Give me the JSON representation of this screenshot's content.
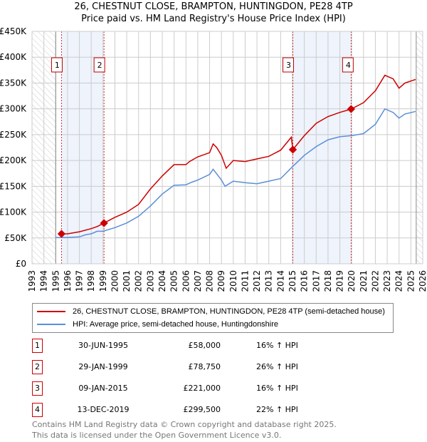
{
  "title_line1": "26, CHESTNUT CLOSE, BRAMPTON, HUNTINGDON, PE28 4TP",
  "title_line2": "Price paid vs. HM Land Registry's House Price Index (HPI)",
  "chart_data": {
    "type": "line",
    "title": "26, CHESTNUT CLOSE, BRAMPTON, HUNTINGDON, PE28 4TP - Price paid vs. HM Land Registry's House Price Index (HPI)",
    "xlim": [
      1993,
      2026
    ],
    "ylim": [
      0,
      450000
    ],
    "x_ticks": [
      "1993",
      "1994",
      "1995",
      "1996",
      "1997",
      "1998",
      "1999",
      "2000",
      "2001",
      "2002",
      "2003",
      "2004",
      "2005",
      "2006",
      "2007",
      "2008",
      "2009",
      "2010",
      "2011",
      "2012",
      "2013",
      "2014",
      "2015",
      "2016",
      "2017",
      "2018",
      "2019",
      "2020",
      "2021",
      "2022",
      "2023",
      "2024",
      "2025",
      "2026"
    ],
    "y_ticks": [
      {
        "v": 0,
        "label": "£0"
      },
      {
        "v": 50000,
        "label": "£50K"
      },
      {
        "v": 100000,
        "label": "£100K"
      },
      {
        "v": 150000,
        "label": "£150K"
      },
      {
        "v": 200000,
        "label": "£200K"
      },
      {
        "v": 250000,
        "label": "£250K"
      },
      {
        "v": 300000,
        "label": "£300K"
      },
      {
        "v": 350000,
        "label": "£350K"
      },
      {
        "v": 400000,
        "label": "£400K"
      },
      {
        "v": 450000,
        "label": "£450K"
      }
    ],
    "grid": true,
    "colors": {
      "property": "#cc0000",
      "hpi": "#5b8fd6",
      "shade": "#eef3fc",
      "hatch": "#cccccc"
    },
    "data_range": [
      1995.0,
      2025.45
    ],
    "series": [
      {
        "name": "26, CHESTNUT CLOSE, BRAMPTON, HUNTINGDON, PE28 4TP (semi-detached house)",
        "x": [
          1995.5,
          1996,
          1997,
          1998,
          1998.5,
          1999.08,
          2000,
          2001,
          2002,
          2003,
          2004,
          2005,
          2006,
          2006.3,
          2007,
          2008,
          2008.3,
          2008.6,
          2009,
          2009.4,
          2010,
          2011,
          2012,
          2013,
          2014,
          2014.9,
          2015.03,
          2016,
          2017,
          2018,
          2019,
          2019.95,
          2021,
          2022,
          2022.8,
          2023.5,
          2024,
          2024.5,
          2025.4
        ],
        "values": [
          58000,
          58000,
          62000,
          68000,
          72000,
          78750,
          90000,
          100000,
          115000,
          145000,
          170000,
          192000,
          192000,
          198000,
          207000,
          215000,
          232000,
          225000,
          210000,
          185000,
          200000,
          198000,
          203000,
          208000,
          220000,
          245000,
          221000,
          248000,
          272000,
          285000,
          293000,
          299500,
          312000,
          335000,
          365000,
          358000,
          340000,
          350000,
          357000
        ]
      },
      {
        "name": "HPI: Average price, semi-detached house, Huntingdonshire",
        "x": [
          1995.0,
          1996,
          1997,
          1997.5,
          1998,
          1998.5,
          1999,
          2000,
          2001,
          2002,
          2003,
          2004,
          2005,
          2006,
          2006.5,
          2007,
          2008,
          2008.3,
          2008.5,
          2009,
          2009.3,
          2010,
          2011,
          2012,
          2013,
          2014,
          2015,
          2016,
          2017,
          2018,
          2019,
          2020,
          2021,
          2022,
          2022.8,
          2023.5,
          2024,
          2024.5,
          2025.4
        ],
        "values": [
          51000,
          51000,
          52000,
          56000,
          58000,
          63000,
          63000,
          70000,
          79000,
          92000,
          112000,
          135000,
          152000,
          153000,
          158000,
          162000,
          173000,
          183000,
          177000,
          162000,
          150000,
          160000,
          157000,
          155000,
          160000,
          165000,
          188000,
          210000,
          227000,
          240000,
          246000,
          248000,
          252000,
          270000,
          300000,
          293000,
          282000,
          290000,
          295000
        ]
      }
    ],
    "sales": [
      {
        "label": "1",
        "x": 1995.49,
        "price": 58000
      },
      {
        "label": "2",
        "x": 1999.08,
        "price": 78750
      },
      {
        "label": "3",
        "x": 2015.03,
        "price": 221000
      },
      {
        "label": "4",
        "x": 2019.95,
        "price": 299500
      }
    ]
  },
  "legend": {
    "property": "26, CHESTNUT CLOSE, BRAMPTON, HUNTINGDON, PE28 4TP (semi-detached house)",
    "hpi": "HPI: Average price, semi-detached house, Huntingdonshire"
  },
  "transactions": [
    {
      "num": "1",
      "date": "30-JUN-1995",
      "price": "£58,000",
      "hpi": "16% ↑ HPI"
    },
    {
      "num": "2",
      "date": "29-JAN-1999",
      "price": "£78,750",
      "hpi": "26% ↑ HPI"
    },
    {
      "num": "3",
      "date": "09-JAN-2015",
      "price": "£221,000",
      "hpi": "16% ↑ HPI"
    },
    {
      "num": "4",
      "date": "13-DEC-2019",
      "price": "£299,500",
      "hpi": "22% ↑ HPI"
    }
  ],
  "footer_line1": "Contains HM Land Registry data © Crown copyright and database right 2025.",
  "footer_line2": "This data is licensed under the Open Government Licence v3.0."
}
